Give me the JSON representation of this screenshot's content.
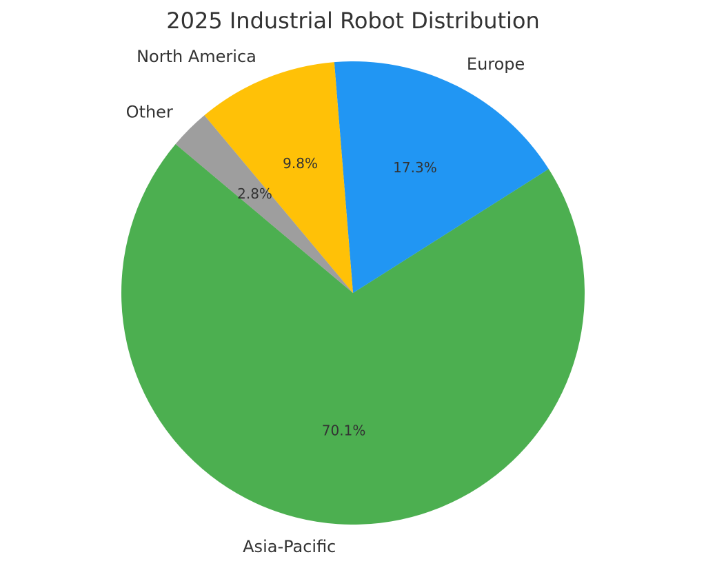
{
  "chart_data": {
    "type": "pie",
    "title": "2025 Industrial Robot Distribution",
    "categories": [
      "Asia-Pacific",
      "Europe",
      "North America",
      "Other"
    ],
    "values": [
      70.1,
      17.3,
      9.8,
      2.8
    ],
    "value_labels": [
      "70.1%",
      "17.3%",
      "9.8%",
      "2.8%"
    ],
    "colors": [
      "#4caf50",
      "#2196f3",
      "#ffc107",
      "#9e9e9e"
    ]
  }
}
